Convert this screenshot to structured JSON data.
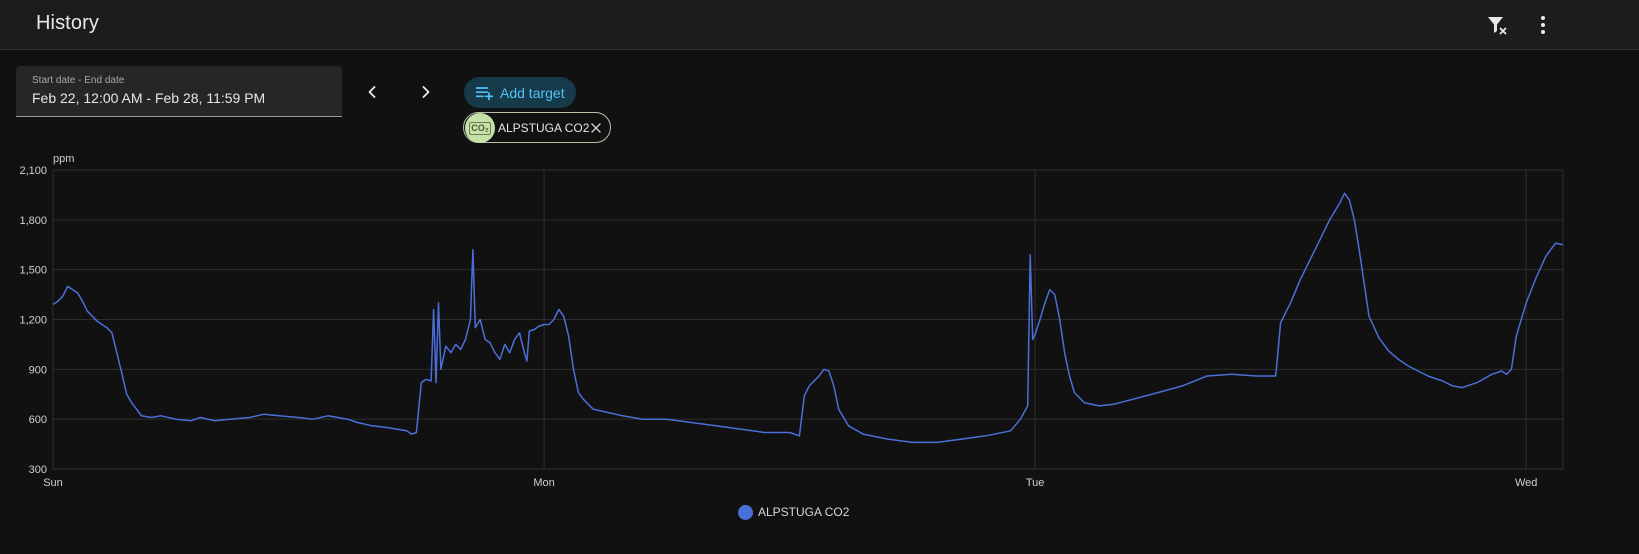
{
  "header": {
    "title": "History",
    "actions": [
      {
        "name": "clear-filter",
        "icon": "filter-remove-icon"
      },
      {
        "name": "more",
        "icon": "dots-vertical-icon"
      }
    ]
  },
  "date_picker": {
    "label": "Start date - End date",
    "value": "Feb 22, 12:00 AM - Feb 28, 11:59 PM"
  },
  "navigation": {
    "prev_icon": "chevron-left-icon",
    "next_icon": "chevron-right-icon"
  },
  "target": {
    "add_label": "Add target",
    "add_icon": "playlist-plus-icon",
    "chip_label": "ALPSTUGA CO2",
    "chip_glyph": "CO₂",
    "chip_icon": "molecule-co2-icon",
    "remove_icon": "close-icon"
  },
  "colors": {
    "background": "#111111",
    "appbar": "#1c1c1c",
    "accent": "#4fc3f7",
    "series": "#4a6fd8",
    "chip_avatar": "#c5e1a5"
  },
  "chart_data": {
    "type": "line",
    "unit": "ppm",
    "y_ticks": [
      "2,100",
      "1,800",
      "1,500",
      "1,200",
      "900",
      "600",
      "300"
    ],
    "ylim": [
      300,
      2100
    ],
    "x_ticks": [
      {
        "label": "Sun",
        "day": 0
      },
      {
        "label": "Mon",
        "day": 1
      },
      {
        "label": "Tue",
        "day": 2
      },
      {
        "label": "Wed",
        "day": 3
      }
    ],
    "xlim": [
      0,
      3.075
    ],
    "grid": true,
    "legend": "bottom-center",
    "series": [
      {
        "name": "ALPSTUGA CO2",
        "points": [
          [
            0,
            1290
          ],
          [
            0.01,
            1310
          ],
          [
            0.02,
            1340
          ],
          [
            0.03,
            1400
          ],
          [
            0.04,
            1380
          ],
          [
            0.05,
            1360
          ],
          [
            0.06,
            1310
          ],
          [
            0.07,
            1250
          ],
          [
            0.08,
            1220
          ],
          [
            0.09,
            1190
          ],
          [
            0.1,
            1170
          ],
          [
            0.11,
            1150
          ],
          [
            0.12,
            1120
          ],
          [
            0.13,
            1000
          ],
          [
            0.14,
            880
          ],
          [
            0.15,
            750
          ],
          [
            0.16,
            700
          ],
          [
            0.17,
            660
          ],
          [
            0.18,
            620
          ],
          [
            0.2,
            610
          ],
          [
            0.22,
            620
          ],
          [
            0.25,
            600
          ],
          [
            0.28,
            590
          ],
          [
            0.3,
            610
          ],
          [
            0.33,
            590
          ],
          [
            0.36,
            600
          ],
          [
            0.4,
            610
          ],
          [
            0.43,
            630
          ],
          [
            0.46,
            620
          ],
          [
            0.5,
            610
          ],
          [
            0.53,
            600
          ],
          [
            0.56,
            620
          ],
          [
            0.6,
            600
          ],
          [
            0.62,
            580
          ],
          [
            0.65,
            560
          ],
          [
            0.68,
            550
          ],
          [
            0.7,
            540
          ],
          [
            0.72,
            530
          ],
          [
            0.73,
            510
          ],
          [
            0.74,
            520
          ],
          [
            0.75,
            820
          ],
          [
            0.76,
            840
          ],
          [
            0.77,
            830
          ],
          [
            0.775,
            1260
          ],
          [
            0.78,
            820
          ],
          [
            0.785,
            1300
          ],
          [
            0.79,
            900
          ],
          [
            0.8,
            1040
          ],
          [
            0.81,
            1000
          ],
          [
            0.82,
            1050
          ],
          [
            0.83,
            1020
          ],
          [
            0.84,
            1080
          ],
          [
            0.85,
            1200
          ],
          [
            0.855,
            1620
          ],
          [
            0.86,
            1150
          ],
          [
            0.87,
            1200
          ],
          [
            0.88,
            1080
          ],
          [
            0.89,
            1060
          ],
          [
            0.9,
            1000
          ],
          [
            0.91,
            960
          ],
          [
            0.92,
            1050
          ],
          [
            0.93,
            1000
          ],
          [
            0.94,
            1080
          ],
          [
            0.95,
            1120
          ],
          [
            0.96,
            1000
          ],
          [
            0.965,
            950
          ],
          [
            0.97,
            1130
          ],
          [
            0.98,
            1140
          ],
          [
            0.99,
            1160
          ],
          [
            1,
            1170
          ],
          [
            1.01,
            1170
          ],
          [
            1.02,
            1200
          ],
          [
            1.03,
            1260
          ],
          [
            1.04,
            1220
          ],
          [
            1.05,
            1100
          ],
          [
            1.06,
            900
          ],
          [
            1.07,
            760
          ],
          [
            1.08,
            720
          ],
          [
            1.1,
            660
          ],
          [
            1.13,
            640
          ],
          [
            1.16,
            620
          ],
          [
            1.2,
            600
          ],
          [
            1.25,
            600
          ],
          [
            1.3,
            580
          ],
          [
            1.35,
            560
          ],
          [
            1.4,
            540
          ],
          [
            1.45,
            520
          ],
          [
            1.5,
            520
          ],
          [
            1.52,
            500
          ],
          [
            1.53,
            740
          ],
          [
            1.54,
            800
          ],
          [
            1.55,
            830
          ],
          [
            1.56,
            860
          ],
          [
            1.57,
            900
          ],
          [
            1.58,
            890
          ],
          [
            1.59,
            800
          ],
          [
            1.6,
            660
          ],
          [
            1.62,
            560
          ],
          [
            1.65,
            510
          ],
          [
            1.7,
            480
          ],
          [
            1.75,
            460
          ],
          [
            1.8,
            460
          ],
          [
            1.85,
            480
          ],
          [
            1.9,
            500
          ],
          [
            1.95,
            530
          ],
          [
            1.97,
            600
          ],
          [
            1.985,
            680
          ],
          [
            1.99,
            1590
          ],
          [
            1.995,
            1080
          ],
          [
            2,
            1110
          ],
          [
            2.01,
            1200
          ],
          [
            2.02,
            1300
          ],
          [
            2.03,
            1380
          ],
          [
            2.04,
            1350
          ],
          [
            2.05,
            1200
          ],
          [
            2.06,
            1000
          ],
          [
            2.07,
            860
          ],
          [
            2.08,
            760
          ],
          [
            2.1,
            700
          ],
          [
            2.13,
            680
          ],
          [
            2.16,
            690
          ],
          [
            2.2,
            720
          ],
          [
            2.25,
            760
          ],
          [
            2.3,
            800
          ],
          [
            2.35,
            860
          ],
          [
            2.4,
            870
          ],
          [
            2.45,
            860
          ],
          [
            2.48,
            860
          ],
          [
            2.49,
            860
          ],
          [
            2.5,
            1180
          ],
          [
            2.52,
            1300
          ],
          [
            2.54,
            1440
          ],
          [
            2.56,
            1560
          ],
          [
            2.58,
            1680
          ],
          [
            2.6,
            1800
          ],
          [
            2.62,
            1900
          ],
          [
            2.63,
            1960
          ],
          [
            2.64,
            1920
          ],
          [
            2.65,
            1800
          ],
          [
            2.66,
            1620
          ],
          [
            2.67,
            1420
          ],
          [
            2.68,
            1220
          ],
          [
            2.7,
            1090
          ],
          [
            2.72,
            1010
          ],
          [
            2.74,
            960
          ],
          [
            2.76,
            920
          ],
          [
            2.8,
            860
          ],
          [
            2.83,
            830
          ],
          [
            2.85,
            800
          ],
          [
            2.87,
            790
          ],
          [
            2.9,
            820
          ],
          [
            2.93,
            870
          ],
          [
            2.95,
            890
          ],
          [
            2.96,
            870
          ],
          [
            2.97,
            900
          ],
          [
            2.98,
            1100
          ],
          [
            3,
            1300
          ],
          [
            3.02,
            1450
          ],
          [
            3.04,
            1580
          ],
          [
            3.06,
            1660
          ],
          [
            3.075,
            1650
          ]
        ]
      }
    ]
  }
}
